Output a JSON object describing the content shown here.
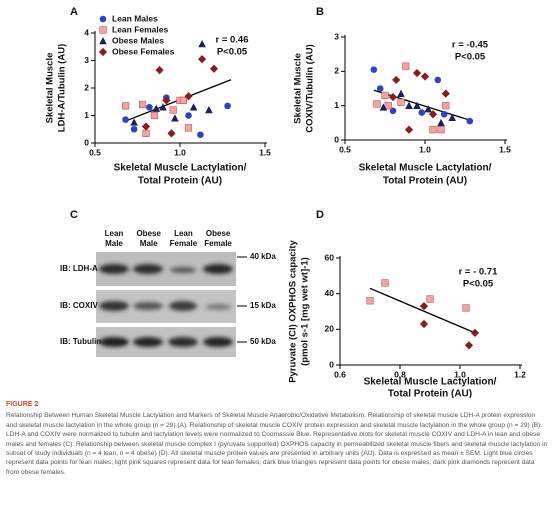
{
  "chart_data": [
    {
      "type": "scatter",
      "panel": "A",
      "ylabel": [
        "Skeletal Muscle",
        "LDH-A/Tubulin (AU)"
      ],
      "xlabel": [
        "Skeletal Muscle Lactylation/",
        "Total Protein (AU)"
      ],
      "xlim": [
        0.5,
        1.5
      ],
      "xticks": [
        0.5,
        {
          "value": 1,
          "label": "1.0"
        },
        1.5
      ],
      "ylim": [
        0,
        4
      ],
      "yticks": [
        0,
        1,
        2,
        3,
        4
      ],
      "legend": "upper left",
      "annotations": [
        "r = 0.46",
        "P<0.05"
      ],
      "series": [
        {
          "name": "Lean Males",
          "color": "#2a45c8",
          "marker": "circle",
          "x": [
            0.68,
            0.73,
            0.82,
            0.92,
            1.05,
            1.12,
            1.28
          ],
          "y": [
            0.85,
            0.5,
            1.3,
            1.65,
            1.0,
            0.3,
            1.35
          ]
        },
        {
          "name": "Lean Females",
          "color": "#f2a3a3",
          "marker": "square",
          "x": [
            0.68,
            0.8,
            0.85,
            0.96,
            1.0,
            1.02,
            1.05,
            0.78
          ],
          "y": [
            1.35,
            0.35,
            1.0,
            1.2,
            1.55,
            1.55,
            0.55,
            1.4
          ]
        },
        {
          "name": "Obese Males",
          "color": "#1b1f5c",
          "marker": "triangle",
          "x": [
            0.73,
            0.86,
            0.9,
            0.97,
            1.08,
            1.13,
            1.17
          ],
          "y": [
            0.75,
            1.25,
            1.3,
            0.9,
            1.3,
            3.6,
            1.2
          ]
        },
        {
          "name": "Obese Females",
          "color": "#8c1c1c",
          "marker": "diamond",
          "x": [
            0.8,
            0.88,
            0.95,
            1.05,
            1.13,
            1.2,
            0.92
          ],
          "y": [
            0.6,
            2.65,
            0.35,
            1.7,
            3.05,
            2.7,
            1.55
          ]
        }
      ],
      "trendline": {
        "x": [
          0.68,
          1.3
        ],
        "y": [
          0.8,
          2.3
        ]
      }
    },
    {
      "type": "scatter",
      "panel": "B",
      "ylabel": [
        "Skeletal Muscle",
        "COXIV/Tubulin (AU)"
      ],
      "xlabel": [
        "Skeletal Muscle Lactylation/",
        "Total Protein (AU)"
      ],
      "xlim": [
        0.5,
        1.5
      ],
      "xticks": [
        0.5,
        {
          "value": 1,
          "label": "1.0"
        },
        1.5
      ],
      "ylim": [
        0,
        3
      ],
      "yticks": [
        0,
        1,
        2,
        3
      ],
      "annotations": [
        "r = -0.45",
        "P<0.05"
      ],
      "series": [
        {
          "color": "#2a45c8",
          "marker": "circle",
          "x": [
            0.68,
            0.72,
            0.8,
            0.98,
            1.08,
            1.12,
            1.28
          ],
          "y": [
            2.05,
            1.5,
            0.85,
            0.8,
            1.75,
            0.75,
            0.55
          ]
        },
        {
          "color": "#f2a3a3",
          "marker": "square",
          "x": [
            0.7,
            0.77,
            0.88,
            0.85,
            1.05,
            1.1,
            1.13,
            0.75
          ],
          "y": [
            1.05,
            1.0,
            2.15,
            1.1,
            0.3,
            0.3,
            1.0,
            1.3
          ]
        },
        {
          "color": "#1b1f5c",
          "marker": "triangle",
          "x": [
            0.74,
            0.85,
            0.9,
            0.95,
            1.02,
            1.1,
            1.17
          ],
          "y": [
            0.95,
            1.35,
            1.0,
            1.0,
            0.9,
            0.5,
            0.65
          ]
        },
        {
          "color": "#8c1c1c",
          "marker": "diamond",
          "x": [
            0.8,
            0.9,
            0.95,
            1.0,
            1.05,
            1.13,
            0.82
          ],
          "y": [
            1.25,
            0.3,
            1.95,
            1.85,
            0.75,
            1.35,
            1.75
          ]
        }
      ],
      "trendline": {
        "x": [
          0.68,
          1.3
        ],
        "y": [
          1.45,
          0.55
        ]
      }
    },
    {
      "type": "scatter",
      "panel": "D",
      "ylabel": [
        "Pyruvate (CI) OXPHOS capacity",
        "(pmol s-1 [mg wet wt]-1)"
      ],
      "xlabel": [
        "Skeletal Muscle Lactylation/",
        "Total Protein (AU)"
      ],
      "xlim": [
        0.6,
        1.2
      ],
      "xticks": [
        0.6,
        0.8,
        {
          "value": 1,
          "label": "1.0"
        },
        1.2
      ],
      "ylim": [
        0,
        60
      ],
      "yticks": [
        0,
        20,
        40,
        60
      ],
      "annotations": [
        "r = - 0.71",
        "P<0.05"
      ],
      "series": [
        {
          "color": "#f2a3a3",
          "marker": "square",
          "x": [
            0.7,
            0.75,
            0.9,
            1.02
          ],
          "y": [
            36,
            46,
            37,
            32
          ]
        },
        {
          "color": "#8c1c1c",
          "marker": "diamond",
          "x": [
            0.88,
            0.88,
            1.03,
            1.05
          ],
          "y": [
            33,
            23,
            11,
            18
          ]
        }
      ],
      "trendline": {
        "x": [
          0.7,
          1.05
        ],
        "y": [
          43,
          18
        ]
      }
    }
  ],
  "panel_c": {
    "panel": "C",
    "lanes": [
      [
        "Lean",
        "Male"
      ],
      [
        "Obese",
        "Male"
      ],
      [
        "Lean",
        "Female"
      ],
      [
        "Obese",
        "Female"
      ]
    ],
    "rows": [
      {
        "label": "IB: LDH-A",
        "marker": "40 kDa"
      },
      {
        "label": "IB: COXIV",
        "marker": "15 kDa"
      },
      {
        "label": "IB: Tubulin",
        "marker": "50 kDa"
      }
    ]
  },
  "caption": {
    "label": "FIGURE 2",
    "text": "Relationship Between Human Skeletal Muscle Lactylation and Markers of Skeletal Muscle Anaerobic/Oxidative Metabolism. Relationship of skeletal muscle LDH-A protein expression and skeletal muscle lactylation in the whole group (n = 29) (A). Relationship of skeletal muscle COXIV protein expression and skeletal muscle lactylation in the whole group (n = 29) (B). LDH-A and COXIV were normalized to tubulin and lactylation levels were normalized to Coomassie Blue. Representative blots for skeletal muscle COXIV and LDH-A in lean and obese males and females (C). Relationship between skeletal muscle complex I (pyruvate supported) OXPHOS capacity in permeabilized skeletal muscle fibers and skeletal muscle lactylation in subset of study individuals (n = 4 lean, n = 4 obese) (D). All skeletal muscle protein values are presented in arbitrary units (AU). Data is expressed as mean ± SEM. Light blue circles represent data points for lean males; light pink squares represent data for lean females; dark blue triangles represent data points for obese males; dark pink diamonds represent data from obese females."
  }
}
